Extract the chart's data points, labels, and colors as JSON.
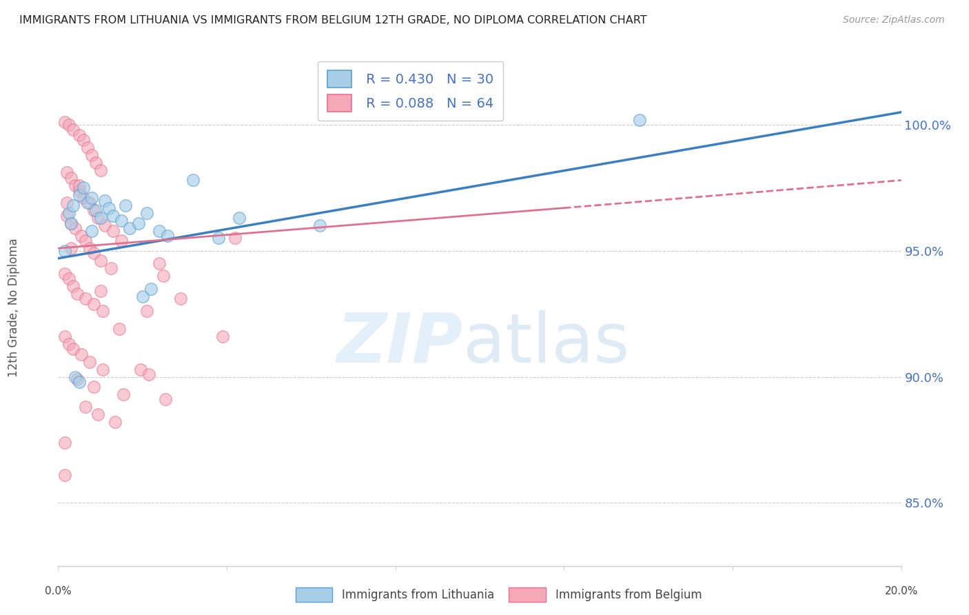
{
  "title": "IMMIGRANTS FROM LITHUANIA VS IMMIGRANTS FROM BELGIUM 12TH GRADE, NO DIPLOMA CORRELATION CHART",
  "source": "Source: ZipAtlas.com",
  "ylabel": "12th Grade, No Diploma",
  "yticks": [
    "85.0%",
    "90.0%",
    "95.0%",
    "100.0%"
  ],
  "ytick_vals": [
    85.0,
    90.0,
    95.0,
    100.0
  ],
  "xlim": [
    0.0,
    20.0
  ],
  "ylim": [
    82.5,
    103.0
  ],
  "legend_R1": "R = 0.430",
  "legend_N1": "N = 30",
  "legend_R2": "R = 0.088",
  "legend_N2": "N = 64",
  "color_lithuania": "#a8cfe8",
  "color_belgium": "#f4a8b8",
  "color_lithuania_edge": "#5a9fd4",
  "color_belgium_edge": "#e87090",
  "color_lithuania_line": "#3a7fc1",
  "color_belgium_line": "#e07090",
  "scatter_lithuania": [
    [
      0.15,
      95.0
    ],
    [
      0.25,
      96.5
    ],
    [
      0.35,
      96.8
    ],
    [
      0.5,
      97.2
    ],
    [
      0.6,
      97.5
    ],
    [
      0.7,
      96.9
    ],
    [
      0.8,
      97.1
    ],
    [
      0.9,
      96.6
    ],
    [
      1.0,
      96.3
    ],
    [
      1.1,
      97.0
    ],
    [
      1.2,
      96.7
    ],
    [
      1.3,
      96.4
    ],
    [
      1.5,
      96.2
    ],
    [
      1.6,
      96.8
    ],
    [
      1.7,
      95.9
    ],
    [
      1.9,
      96.1
    ],
    [
      2.1,
      96.5
    ],
    [
      2.4,
      95.8
    ],
    [
      2.6,
      95.6
    ],
    [
      3.2,
      97.8
    ],
    [
      3.8,
      95.5
    ],
    [
      0.4,
      90.0
    ],
    [
      0.5,
      89.8
    ],
    [
      2.0,
      93.2
    ],
    [
      2.2,
      93.5
    ],
    [
      4.3,
      96.3
    ],
    [
      6.2,
      96.0
    ],
    [
      13.8,
      100.2
    ],
    [
      0.3,
      96.1
    ],
    [
      0.8,
      95.8
    ]
  ],
  "scatter_belgium": [
    [
      0.15,
      100.1
    ],
    [
      0.25,
      100.0
    ],
    [
      0.35,
      99.8
    ],
    [
      0.5,
      99.6
    ],
    [
      0.6,
      99.4
    ],
    [
      0.7,
      99.1
    ],
    [
      0.8,
      98.8
    ],
    [
      0.9,
      98.5
    ],
    [
      1.0,
      98.2
    ],
    [
      0.2,
      98.1
    ],
    [
      0.3,
      97.9
    ],
    [
      0.4,
      97.6
    ],
    [
      0.5,
      97.4
    ],
    [
      0.6,
      97.1
    ],
    [
      0.75,
      96.9
    ],
    [
      0.85,
      96.6
    ],
    [
      0.95,
      96.3
    ],
    [
      1.1,
      96.0
    ],
    [
      1.3,
      95.8
    ],
    [
      0.2,
      96.4
    ],
    [
      0.3,
      96.1
    ],
    [
      0.4,
      95.9
    ],
    [
      0.55,
      95.6
    ],
    [
      0.65,
      95.4
    ],
    [
      0.75,
      95.1
    ],
    [
      0.85,
      94.9
    ],
    [
      1.0,
      94.6
    ],
    [
      1.25,
      94.3
    ],
    [
      0.15,
      94.1
    ],
    [
      0.25,
      93.9
    ],
    [
      0.35,
      93.6
    ],
    [
      0.45,
      93.3
    ],
    [
      0.65,
      93.1
    ],
    [
      0.85,
      92.9
    ],
    [
      1.05,
      92.6
    ],
    [
      2.4,
      94.5
    ],
    [
      2.9,
      93.1
    ],
    [
      1.45,
      91.9
    ],
    [
      0.15,
      91.6
    ],
    [
      0.25,
      91.3
    ],
    [
      0.35,
      91.1
    ],
    [
      0.55,
      90.9
    ],
    [
      0.75,
      90.6
    ],
    [
      1.05,
      90.3
    ],
    [
      1.95,
      90.3
    ],
    [
      2.15,
      90.1
    ],
    [
      0.45,
      89.9
    ],
    [
      0.85,
      89.6
    ],
    [
      1.55,
      89.3
    ],
    [
      2.55,
      89.1
    ],
    [
      0.65,
      88.8
    ],
    [
      0.95,
      88.5
    ],
    [
      1.35,
      88.2
    ],
    [
      0.15,
      87.4
    ],
    [
      2.1,
      92.6
    ],
    [
      3.9,
      91.6
    ],
    [
      0.3,
      95.1
    ],
    [
      0.5,
      97.6
    ],
    [
      0.2,
      96.9
    ],
    [
      0.15,
      86.1
    ],
    [
      1.5,
      95.4
    ],
    [
      4.2,
      95.5
    ],
    [
      2.5,
      94.0
    ],
    [
      1.0,
      93.4
    ]
  ],
  "lith_line": [
    0.0,
    94.7,
    20.0,
    100.5
  ],
  "belg_line_solid": [
    0.0,
    95.1,
    12.0,
    96.7
  ],
  "belg_line_dashed": [
    12.0,
    96.7,
    20.0,
    97.8
  ]
}
